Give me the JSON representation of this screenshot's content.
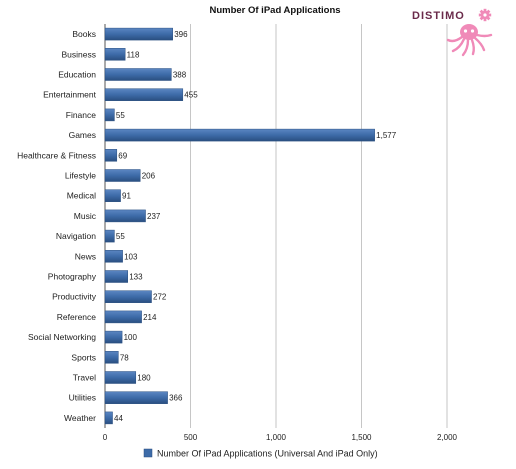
{
  "chart_data": {
    "type": "bar",
    "orientation": "horizontal",
    "title": "Number Of iPad Applications",
    "categories": [
      "Books",
      "Business",
      "Education",
      "Entertainment",
      "Finance",
      "Games",
      "Healthcare & Fitness",
      "Lifestyle",
      "Medical",
      "Music",
      "Navigation",
      "News",
      "Photography",
      "Productivity",
      "Reference",
      "Social Networking",
      "Sports",
      "Travel",
      "Utilities",
      "Weather"
    ],
    "series": [
      {
        "name": "Number Of iPad Applications (Universal And iPad Only)",
        "values": [
          396,
          118,
          388,
          455,
          55,
          1577,
          69,
          206,
          91,
          237,
          55,
          103,
          133,
          272,
          214,
          100,
          78,
          180,
          366,
          44
        ],
        "value_labels": [
          "396",
          "118",
          "388",
          "455",
          "55",
          "1,577",
          "69",
          "206",
          "91",
          "237",
          "55",
          "103",
          "133",
          "272",
          "214",
          "100",
          "78",
          "180",
          "366",
          "44"
        ]
      }
    ],
    "x_ticks": [
      0,
      500,
      1000,
      1500,
      2000
    ],
    "x_tick_labels": [
      "0",
      "500",
      "1,000",
      "1,500",
      "2,000"
    ],
    "xlim": [
      0,
      2000
    ],
    "xlabel": "",
    "ylabel": "",
    "grid": true,
    "legend": "bottom",
    "colors": {
      "bar": "#3d6ba8",
      "bar_dark": "#2a4f80",
      "grid": "#b8b8b8"
    }
  },
  "logo": {
    "text": "DISTIMO",
    "color": "#f08ab8"
  }
}
